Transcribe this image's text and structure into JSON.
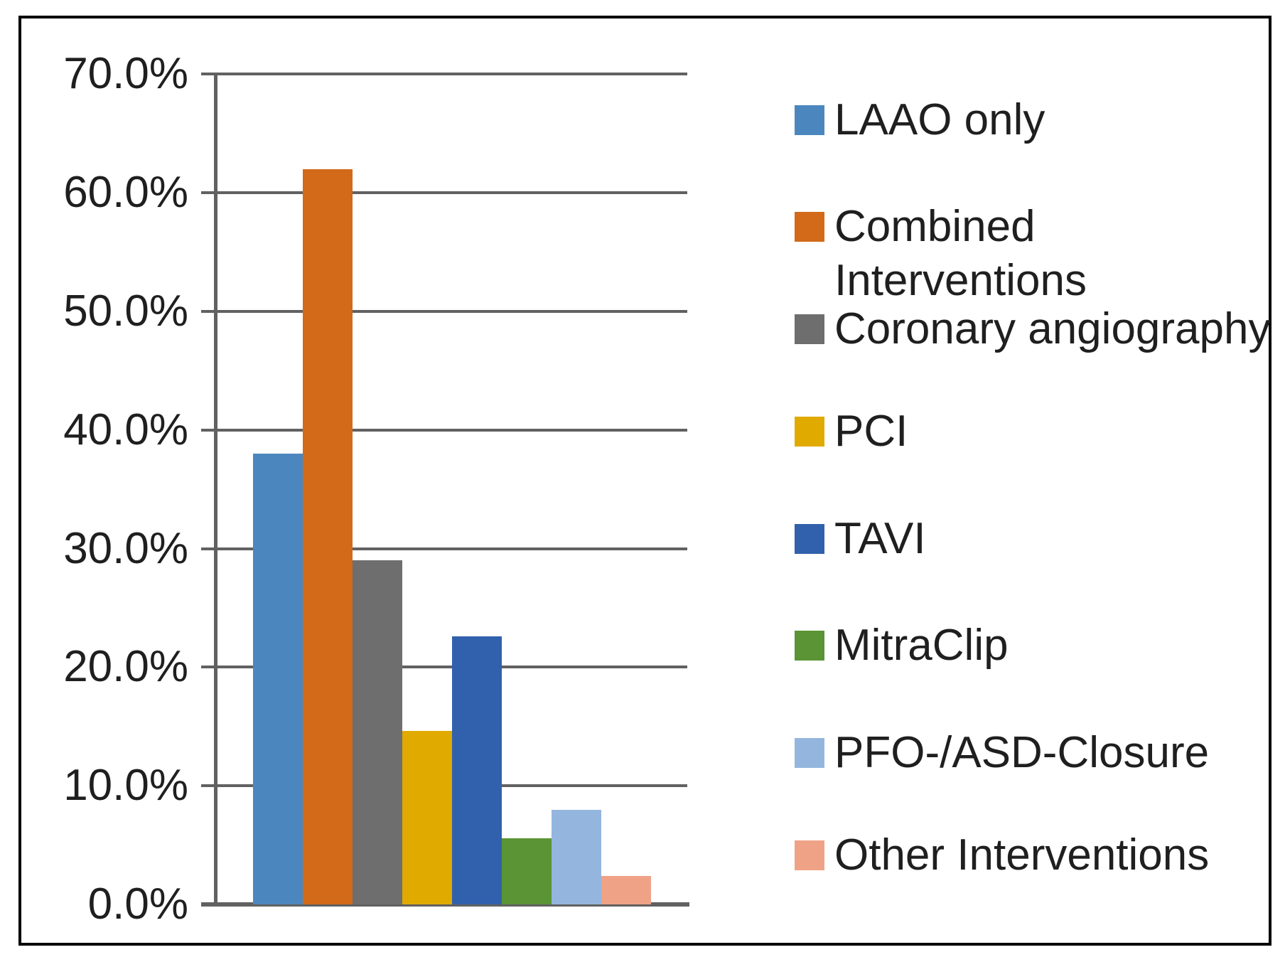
{
  "chart_data": {
    "type": "bar",
    "title": "",
    "xlabel": "",
    "ylabel": "",
    "unit": "%",
    "ylim": [
      0,
      70
    ],
    "ytick_step": 10,
    "grid": "horizontal",
    "legend_position": "right",
    "categories": [
      "LAAO only",
      "Combined Interventions",
      "Coronary angiography",
      "PCI",
      "TAVI",
      "MitraClip",
      "PFO-/ASD-Closure",
      "Other Interventions"
    ],
    "values": [
      38.0,
      62.0,
      29.0,
      14.6,
      22.6,
      5.6,
      8.0,
      2.4
    ],
    "bar_colors": [
      "#4B87BE",
      "#D26A19",
      "#6E6E6E",
      "#E0AA00",
      "#3161AC",
      "#5A9434",
      "#94B6DE",
      "#F0A286"
    ],
    "yticks": [
      {
        "value": 70,
        "label": "70.0%"
      },
      {
        "value": 60,
        "label": "60.0%"
      },
      {
        "value": 50,
        "label": "50.0%"
      },
      {
        "value": 40,
        "label": "40.0%"
      },
      {
        "value": 30,
        "label": "30.0%"
      },
      {
        "value": 20,
        "label": "20.0%"
      },
      {
        "value": 10,
        "label": "10.0%"
      },
      {
        "value": 0,
        "label": "0.0%"
      }
    ],
    "legend": [
      {
        "lines": [
          "LAAO only"
        ],
        "color": "#4B87BE"
      },
      {
        "lines": [
          "Combined",
          "Interventions"
        ],
        "color": "#D26A19"
      },
      {
        "lines": [
          "Coronary angiography"
        ],
        "color": "#6E6E6E"
      },
      {
        "lines": [
          "PCI"
        ],
        "color": "#E0AA00"
      },
      {
        "lines": [
          "TAVI"
        ],
        "color": "#3161AC"
      },
      {
        "lines": [
          "MitraClip"
        ],
        "color": "#5A9434"
      },
      {
        "lines": [
          "PFO-/ASD-Closure"
        ],
        "color": "#94B6DE"
      },
      {
        "lines": [
          "Other Interventions"
        ],
        "color": "#F0A286"
      }
    ]
  },
  "colors": {
    "grid": "#616161",
    "axis": "#616161",
    "text": "#1f1f1f",
    "border": "#000000",
    "background": "#ffffff"
  }
}
